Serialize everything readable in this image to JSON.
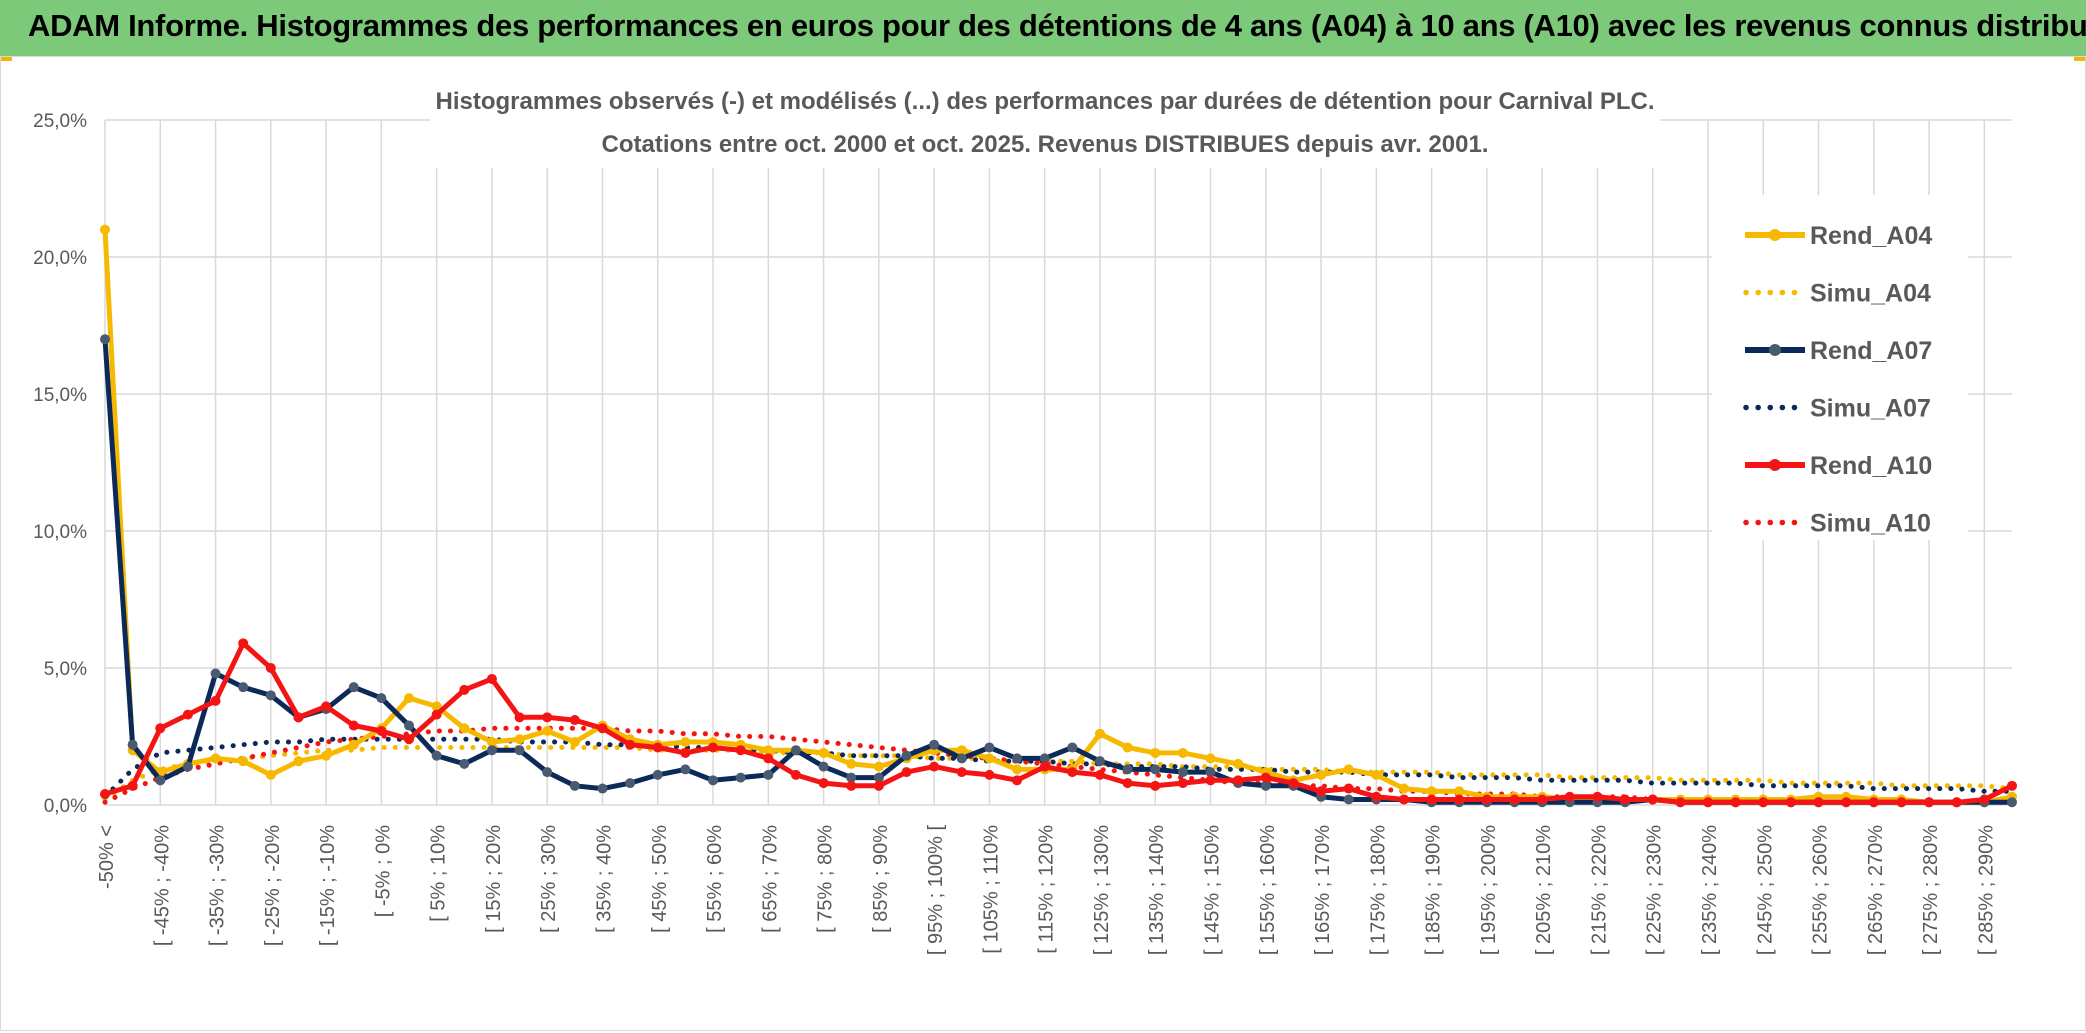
{
  "banner": {
    "title": "ADAM Informe. Histogrammes des performances en euros pour des détentions de 4 ans (A04) à 10 ans (A10) avec les revenus connus distribués"
  },
  "colors": {
    "banner_bg": "#7dc97a",
    "A04": "#f7b900",
    "A07": "#0b2a5a",
    "A07_marker": "#4a5a70",
    "A10": "#f51414",
    "grid": "#d9d9d9"
  },
  "chart_data": {
    "type": "line",
    "title_line1": "Histogrammes observés (-) et modélisés (...) des performances par durées de détention pour Carnival PLC.",
    "title_line2": "Cotations entre oct. 2000 et oct. 2025. Revenus DISTRIBUES depuis avr. 2001.",
    "grid": true,
    "legend_position": "right",
    "ylim": [
      0,
      25
    ],
    "y_ticks": [
      0,
      5,
      10,
      15,
      20,
      25
    ],
    "y_tick_labels": [
      "0,0%",
      "5,0%",
      "10,0%",
      "15,0%",
      "20,0%",
      "25,0%"
    ],
    "x_tick_labels": [
      "-50% <",
      "[ -45% ; -40%",
      "[ -35% ; -30%",
      "[ -25% ; -20%",
      "[ -15% ; -10%",
      "[ -5% ; 0%",
      "[ 5% ; 10%",
      "[ 15% ; 20%",
      "[ 25% ; 30%",
      "[ 35% ; 40%",
      "[ 45% ; 50%",
      "[ 55% ; 60%",
      "[ 65% ; 70%",
      "[ 75% ; 80%",
      "[ 85% ; 90%",
      "[ 95% ; 100% [",
      "[ 105% ; 110%",
      "[ 115% ; 120%",
      "[ 125% ; 130%",
      "[ 135% ; 140%",
      "[ 145% ; 150%",
      "[ 155% ; 160%",
      "[ 165% ; 170%",
      "[ 175% ; 180%",
      "[ 185% ; 190%",
      "[ 195% ; 200%",
      "[ 205% ; 210%",
      "[ 215% ; 220%",
      "[ 225% ; 230%",
      "[ 235% ; 240%",
      "[ 245% ; 250%",
      "[ 255% ; 260%",
      "[ 265% ; 270%",
      "[ 275% ; 280%",
      "[ 285% ; 290%"
    ],
    "n_points": 70,
    "series": [
      {
        "name": "Rend_A04",
        "style": "solid",
        "color": "#f7b900",
        "values": [
          21.0,
          2.0,
          1.2,
          1.5,
          1.7,
          1.6,
          1.1,
          1.6,
          1.8,
          2.2,
          2.8,
          3.9,
          3.6,
          2.8,
          2.3,
          2.4,
          2.7,
          2.3,
          2.9,
          2.4,
          2.2,
          2.3,
          2.3,
          2.2,
          2.0,
          2.0,
          1.9,
          1.5,
          1.4,
          1.7,
          2.0,
          2.0,
          1.7,
          1.3,
          1.3,
          1.3,
          2.6,
          2.1,
          1.9,
          1.9,
          1.7,
          1.5,
          1.2,
          0.9,
          1.1,
          1.3,
          1.1,
          0.6,
          0.5,
          0.5,
          0.3,
          0.3,
          0.3,
          0.2,
          0.2,
          0.2,
          0.2,
          0.2,
          0.2,
          0.2,
          0.2,
          0.2,
          0.3,
          0.3,
          0.2,
          0.2,
          0.1,
          0.1,
          0.1,
          0.3
        ]
      },
      {
        "name": "Simu_A04",
        "style": "dotted",
        "color": "#f7b900",
        "values": [
          0.2,
          0.9,
          1.3,
          1.5,
          1.6,
          1.7,
          1.8,
          1.9,
          2.0,
          2.0,
          2.1,
          2.1,
          2.1,
          2.1,
          2.1,
          2.1,
          2.1,
          2.1,
          2.1,
          2.1,
          2.0,
          2.0,
          2.0,
          2.0,
          1.9,
          1.9,
          1.9,
          1.8,
          1.8,
          1.8,
          1.7,
          1.7,
          1.7,
          1.6,
          1.6,
          1.6,
          1.5,
          1.5,
          1.5,
          1.4,
          1.4,
          1.4,
          1.3,
          1.3,
          1.3,
          1.2,
          1.2,
          1.2,
          1.2,
          1.1,
          1.1,
          1.1,
          1.1,
          1.0,
          1.0,
          1.0,
          1.0,
          0.9,
          0.9,
          0.9,
          0.9,
          0.8,
          0.8,
          0.8,
          0.8,
          0.7,
          0.7,
          0.7,
          0.7,
          0.6
        ]
      },
      {
        "name": "Rend_A07",
        "style": "solid",
        "color": "#0b2a5a",
        "values": [
          17.0,
          2.2,
          0.9,
          1.4,
          4.8,
          4.3,
          4.0,
          3.2,
          3.5,
          4.3,
          3.9,
          2.9,
          1.8,
          1.5,
          2.0,
          2.0,
          1.2,
          0.7,
          0.6,
          0.8,
          1.1,
          1.3,
          0.9,
          1.0,
          1.1,
          2.0,
          1.4,
          1.0,
          1.0,
          1.8,
          2.2,
          1.7,
          2.1,
          1.7,
          1.7,
          2.1,
          1.6,
          1.3,
          1.3,
          1.2,
          1.2,
          0.8,
          0.7,
          0.7,
          0.3,
          0.2,
          0.2,
          0.2,
          0.1,
          0.1,
          0.1,
          0.1,
          0.1,
          0.1,
          0.1,
          0.1,
          0.2,
          0.1,
          0.1,
          0.1,
          0.1,
          0.1,
          0.1,
          0.1,
          0.1,
          0.1,
          0.1,
          0.1,
          0.1,
          0.1
        ]
      },
      {
        "name": "Simu_A07",
        "style": "dotted",
        "color": "#0b2a5a",
        "values": [
          0.3,
          1.3,
          1.9,
          2.0,
          2.1,
          2.2,
          2.3,
          2.3,
          2.4,
          2.4,
          2.4,
          2.4,
          2.4,
          2.4,
          2.4,
          2.3,
          2.3,
          2.3,
          2.2,
          2.2,
          2.2,
          2.1,
          2.1,
          2.0,
          2.0,
          1.9,
          1.9,
          1.8,
          1.8,
          1.8,
          1.7,
          1.7,
          1.6,
          1.6,
          1.6,
          1.5,
          1.5,
          1.4,
          1.4,
          1.4,
          1.3,
          1.3,
          1.3,
          1.2,
          1.2,
          1.2,
          1.1,
          1.1,
          1.1,
          1.0,
          1.0,
          1.0,
          0.9,
          0.9,
          0.9,
          0.9,
          0.8,
          0.8,
          0.8,
          0.8,
          0.7,
          0.7,
          0.7,
          0.7,
          0.6,
          0.6,
          0.6,
          0.6,
          0.5,
          0.5
        ]
      },
      {
        "name": "Rend_A10",
        "style": "solid",
        "color": "#f51414",
        "values": [
          0.4,
          0.7,
          2.8,
          3.3,
          3.8,
          5.9,
          5.0,
          3.2,
          3.6,
          2.9,
          2.7,
          2.4,
          3.3,
          4.2,
          4.6,
          3.2,
          3.2,
          3.1,
          2.8,
          2.2,
          2.1,
          1.9,
          2.1,
          2.0,
          1.7,
          1.1,
          0.8,
          0.7,
          0.7,
          1.2,
          1.4,
          1.2,
          1.1,
          0.9,
          1.4,
          1.2,
          1.1,
          0.8,
          0.7,
          0.8,
          0.9,
          0.9,
          1.0,
          0.8,
          0.5,
          0.6,
          0.3,
          0.2,
          0.2,
          0.2,
          0.2,
          0.2,
          0.2,
          0.3,
          0.3,
          0.2,
          0.2,
          0.1,
          0.1,
          0.1,
          0.1,
          0.1,
          0.1,
          0.1,
          0.1,
          0.1,
          0.1,
          0.1,
          0.2,
          0.7
        ]
      },
      {
        "name": "Simu_A10",
        "style": "dotted",
        "color": "#f51414",
        "values": [
          0.1,
          0.6,
          1.0,
          1.3,
          1.5,
          1.7,
          1.9,
          2.1,
          2.3,
          2.4,
          2.5,
          2.6,
          2.7,
          2.7,
          2.8,
          2.8,
          2.8,
          2.8,
          2.8,
          2.7,
          2.7,
          2.6,
          2.6,
          2.5,
          2.5,
          2.4,
          2.3,
          2.2,
          2.1,
          2.0,
          1.9,
          1.8,
          1.7,
          1.6,
          1.5,
          1.4,
          1.3,
          1.2,
          1.1,
          1.0,
          0.9,
          0.8,
          0.8,
          0.7,
          0.7,
          0.6,
          0.6,
          0.5,
          0.5,
          0.4,
          0.4,
          0.4,
          0.3,
          0.3,
          0.3,
          0.3,
          0.2,
          0.2,
          0.2,
          0.2,
          0.2,
          0.2,
          0.1,
          0.1,
          0.1,
          0.1,
          0.1,
          0.1,
          0.1,
          0.1
        ]
      }
    ]
  }
}
